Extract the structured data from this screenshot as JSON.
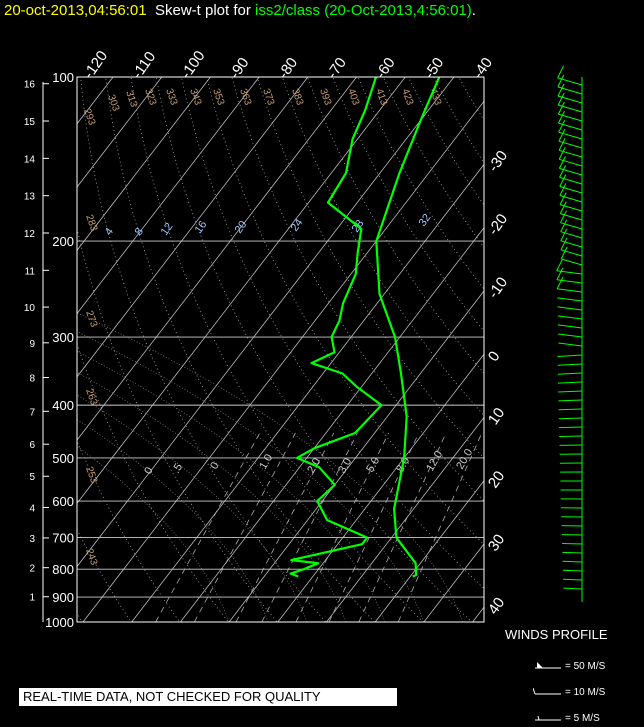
{
  "title": {
    "stamp": "20-oct-2013,04:56:01",
    "plot_label": "Skew-t plot for",
    "source": "iss2/class (20-Oct-2013,4:56:01)",
    "period": "."
  },
  "notice": "REAL-TIME DATA, NOT CHECKED FOR QUALITY",
  "winds_profile": {
    "title": "WINDS PROFILE",
    "key": [
      "= 50 M/S",
      "= 10 M/S",
      "= 5 M/S"
    ]
  },
  "colors": {
    "trace": "#00ff00",
    "axis": "#ffffff",
    "dry_adiabat": "#c8a070",
    "mixing_ratio": "#a0c8ff",
    "background": "#000000"
  },
  "chart_data": {
    "type": "line",
    "title": "",
    "pressure_ticks_mb": [
      100,
      200,
      300,
      400,
      500,
      600,
      700,
      800,
      900,
      1000
    ],
    "height_ticks_km": [
      1,
      2,
      3,
      4,
      5,
      6,
      7,
      8,
      9,
      10,
      11,
      12,
      13,
      14,
      15,
      16
    ],
    "top_temperature_ticks": [
      "-120",
      "-110",
      "-100",
      "-90",
      "-80",
      "-70",
      "-60",
      "-50",
      "-40"
    ],
    "right_temperature_ticks": [
      "-30",
      "-20",
      "-10",
      "0",
      "10",
      "20",
      "30",
      "40"
    ],
    "dry_adiabat_labels": [
      "293",
      "303",
      "313",
      "323",
      "333",
      "343",
      "353",
      "363",
      "373",
      "383",
      "393",
      "403",
      "413",
      "423",
      "433",
      "283",
      "273",
      "263",
      "253",
      "243"
    ],
    "mixing_ratio_labels_top": [
      "4",
      "8",
      "12",
      "16",
      "20",
      "24",
      "28",
      "32"
    ],
    "mixing_ratio_labels_mid": [
      "0",
      ".5",
      "0",
      "1.0",
      "2.0",
      "3.0",
      "5.0",
      "8.0",
      "12.0",
      "20.0"
    ],
    "series": [
      {
        "name": "temperature",
        "p_mb": [
          825,
          820,
          780,
          700,
          620,
          500,
          420,
          350,
          300,
          250,
          200,
          150,
          120,
          100
        ],
        "t_c": [
          20.5,
          21,
          19,
          11,
          6,
          0,
          -6,
          -14,
          -21,
          -31,
          -40,
          -46,
          -50,
          -53
        ]
      },
      {
        "name": "dewpoint",
        "p_mb": [
          825,
          815,
          800,
          780,
          770,
          720,
          700,
          650,
          600,
          560,
          520,
          500,
          480,
          450,
          400,
          370,
          350,
          335,
          320,
          300,
          280,
          260,
          230,
          210,
          190,
          170,
          150,
          130,
          115,
          100
        ],
        "t_c": [
          -3,
          -5,
          -3,
          -1,
          -7,
          5,
          5,
          -6,
          -11,
          -10,
          -16,
          -22,
          -20,
          -14,
          -13,
          -21,
          -26,
          -34,
          -31,
          -34,
          -35,
          -37,
          -39,
          -42,
          -45,
          -56,
          -57,
          -61,
          -63,
          -66
        ]
      }
    ]
  }
}
